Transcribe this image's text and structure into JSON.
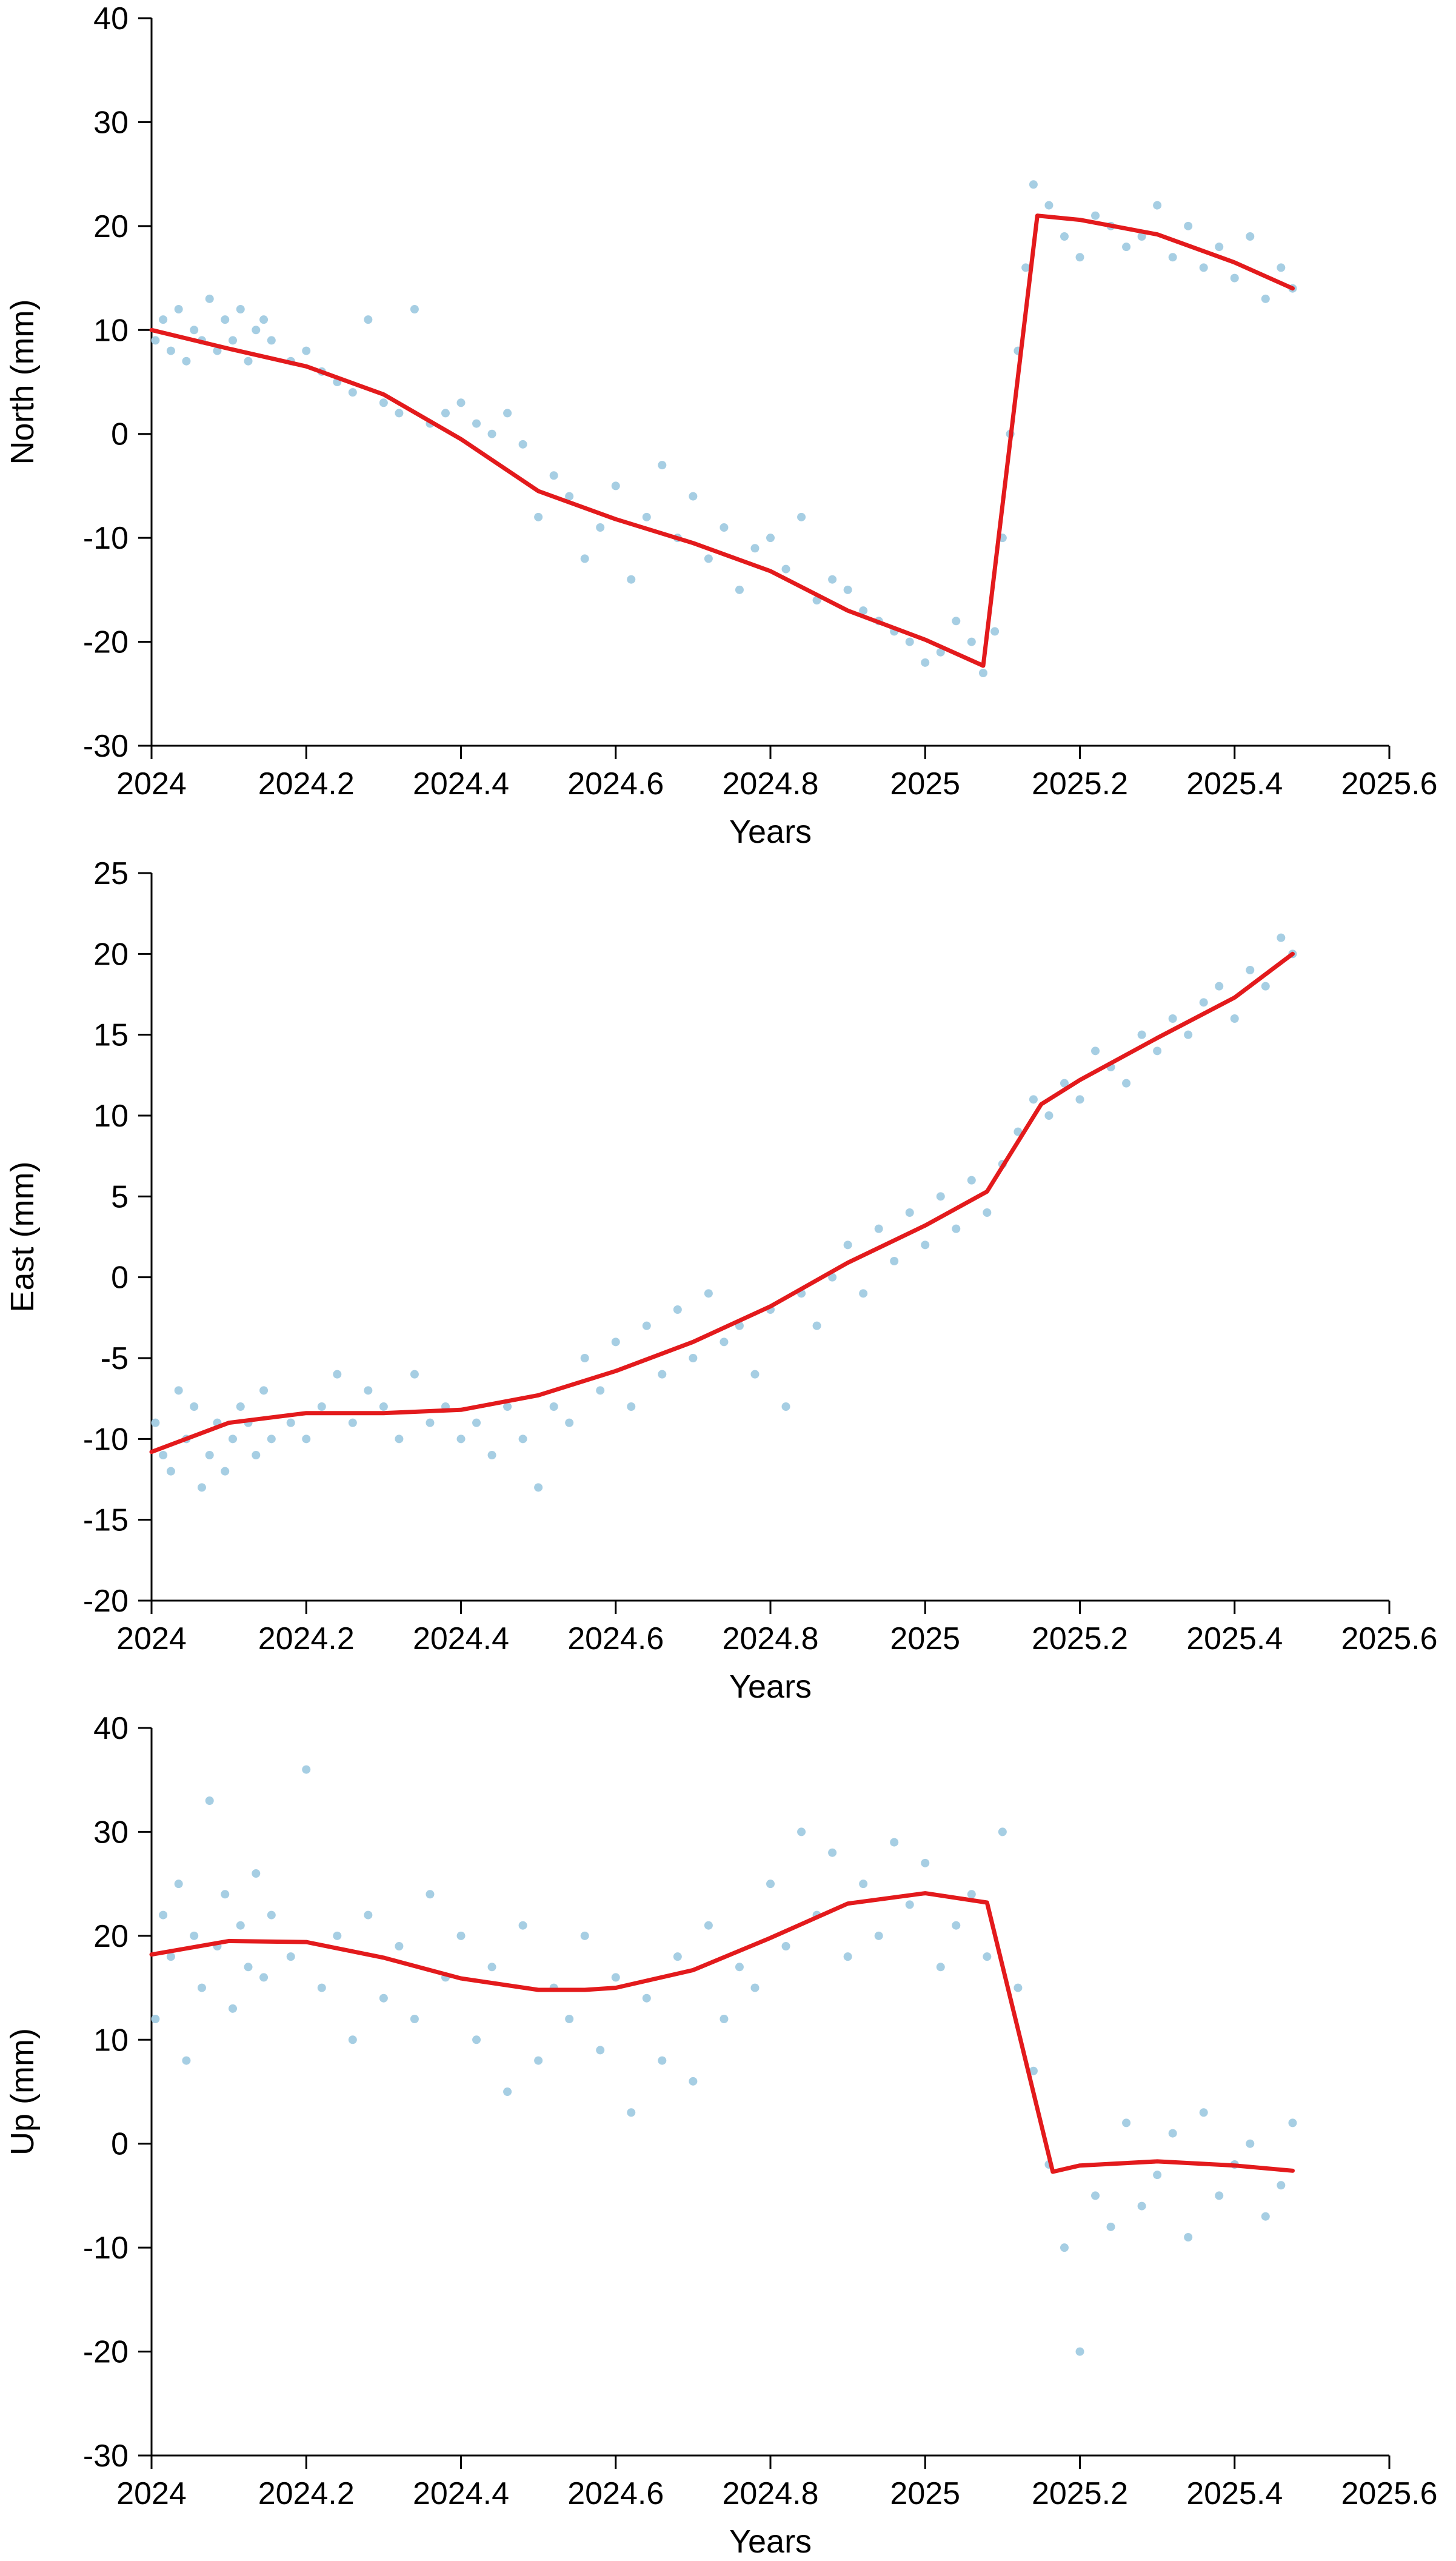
{
  "colors": {
    "points": "#a6cee3",
    "model_line": "#e31a1c",
    "axis": "#000000"
  },
  "chart_data": [
    {
      "type": "scatter",
      "title": "",
      "xlabel": "Years",
      "ylabel": "North (mm)",
      "xlim": [
        2024,
        2025.6
      ],
      "ylim": [
        -30,
        40
      ],
      "xticks": [
        2024,
        2024.2,
        2024.4,
        2024.6,
        2024.8,
        2025,
        2025.2,
        2025.4,
        2025.6
      ],
      "xtick_labels": [
        "2024",
        "2024.2",
        "2024.4",
        "2024.6",
        "2024.8",
        "2025",
        "2025.2",
        "2025.4",
        "2025.6"
      ],
      "yticks": [
        -30,
        -20,
        -10,
        0,
        10,
        20,
        30,
        40
      ],
      "ytick_labels": [
        "-30",
        "-20",
        "-10",
        "0",
        "10",
        "20",
        "30",
        "40"
      ],
      "grid": false,
      "series": [
        {
          "type": "scatter",
          "x": [
            2024.005,
            2024.015,
            2024.025,
            2024.035,
            2024.045,
            2024.055,
            2024.065,
            2024.075,
            2024.085,
            2024.095,
            2024.105,
            2024.115,
            2024.125,
            2024.135,
            2024.145,
            2024.155,
            2024.18,
            2024.2,
            2024.22,
            2024.24,
            2024.26,
            2024.28,
            2024.3,
            2024.32,
            2024.34,
            2024.36,
            2024.38,
            2024.4,
            2024.42,
            2024.44,
            2024.46,
            2024.48,
            2024.5,
            2024.52,
            2024.54,
            2024.56,
            2024.58,
            2024.6,
            2024.62,
            2024.64,
            2024.66,
            2024.68,
            2024.7,
            2024.72,
            2024.74,
            2024.76,
            2024.78,
            2024.8,
            2024.82,
            2024.84,
            2024.86,
            2024.88,
            2024.9,
            2024.92,
            2024.94,
            2024.96,
            2024.98,
            2025.0,
            2025.02,
            2025.04,
            2025.06,
            2025.075,
            2025.09,
            2025.1,
            2025.11,
            2025.12,
            2025.13,
            2025.14,
            2025.16,
            2025.18,
            2025.2,
            2025.22,
            2025.24,
            2025.26,
            2025.28,
            2025.3,
            2025.32,
            2025.34,
            2025.36,
            2025.38,
            2025.4,
            2025.42,
            2025.44,
            2025.46,
            2025.475
          ],
          "y": [
            9,
            11,
            8,
            12,
            7,
            10,
            9,
            13,
            8,
            11,
            9,
            12,
            7,
            10,
            11,
            9,
            7,
            8,
            6,
            5,
            4,
            11,
            3,
            2,
            12,
            1,
            2,
            3,
            1,
            0,
            2,
            -1,
            -8,
            -4,
            -6,
            -12,
            -9,
            -5,
            -14,
            -8,
            -3,
            -10,
            -6,
            -12,
            -9,
            -15,
            -11,
            -10,
            -13,
            -8,
            -16,
            -14,
            -15,
            -17,
            -18,
            -19,
            -20,
            -22,
            -21,
            -18,
            -20,
            -23,
            -19,
            -10,
            0,
            8,
            16,
            24,
            22,
            19,
            17,
            21,
            20,
            18,
            19,
            22,
            17,
            20,
            16,
            18,
            15,
            19,
            13,
            16,
            14
          ]
        },
        {
          "type": "line",
          "x": [
            2024.0,
            2024.1,
            2024.2,
            2024.3,
            2024.4,
            2024.5,
            2024.6,
            2024.7,
            2024.8,
            2024.9,
            2025.0,
            2025.075,
            2025.145,
            2025.2,
            2025.3,
            2025.4,
            2025.475
          ],
          "y": [
            10,
            8.2,
            6.5,
            3.8,
            -0.5,
            -5.5,
            -8.2,
            -10.5,
            -13.2,
            -17.0,
            -19.8,
            -22.3,
            21.0,
            20.6,
            19.2,
            16.5,
            14.0
          ]
        }
      ]
    },
    {
      "type": "scatter",
      "title": "",
      "xlabel": "Years",
      "ylabel": "East (mm)",
      "xlim": [
        2024,
        2025.6
      ],
      "ylim": [
        -20,
        25
      ],
      "xticks": [
        2024,
        2024.2,
        2024.4,
        2024.6,
        2024.8,
        2025,
        2025.2,
        2025.4,
        2025.6
      ],
      "xtick_labels": [
        "2024",
        "2024.2",
        "2024.4",
        "2024.6",
        "2024.8",
        "2025",
        "2025.2",
        "2025.4",
        "2025.6"
      ],
      "yticks": [
        -20,
        -15,
        -10,
        -5,
        0,
        5,
        10,
        15,
        20,
        25
      ],
      "ytick_labels": [
        "-20",
        "-15",
        "-10",
        "-5",
        "0",
        "5",
        "10",
        "15",
        "20",
        "25"
      ],
      "grid": false,
      "series": [
        {
          "type": "scatter",
          "x": [
            2024.005,
            2024.015,
            2024.025,
            2024.035,
            2024.045,
            2024.055,
            2024.065,
            2024.075,
            2024.085,
            2024.095,
            2024.105,
            2024.115,
            2024.125,
            2024.135,
            2024.145,
            2024.155,
            2024.18,
            2024.2,
            2024.22,
            2024.24,
            2024.26,
            2024.28,
            2024.3,
            2024.32,
            2024.34,
            2024.36,
            2024.38,
            2024.4,
            2024.42,
            2024.44,
            2024.46,
            2024.48,
            2024.5,
            2024.52,
            2024.54,
            2024.56,
            2024.58,
            2024.6,
            2024.62,
            2024.64,
            2024.66,
            2024.68,
            2024.7,
            2024.72,
            2024.74,
            2024.76,
            2024.78,
            2024.8,
            2024.82,
            2024.84,
            2024.86,
            2024.88,
            2024.9,
            2024.92,
            2024.94,
            2024.96,
            2024.98,
            2025.0,
            2025.02,
            2025.04,
            2025.06,
            2025.08,
            2025.1,
            2025.12,
            2025.14,
            2025.16,
            2025.18,
            2025.2,
            2025.22,
            2025.24,
            2025.26,
            2025.28,
            2025.3,
            2025.32,
            2025.34,
            2025.36,
            2025.38,
            2025.4,
            2025.42,
            2025.44,
            2025.46,
            2025.475
          ],
          "y": [
            -9,
            -11,
            -12,
            -7,
            -10,
            -8,
            -13,
            -11,
            -9,
            -12,
            -10,
            -8,
            -9,
            -11,
            -7,
            -10,
            -9,
            -10,
            -8,
            -6,
            -9,
            -7,
            -8,
            -10,
            -6,
            -9,
            -8,
            -10,
            -9,
            -11,
            -8,
            -10,
            -13,
            -8,
            -9,
            -5,
            -7,
            -4,
            -8,
            -3,
            -6,
            -2,
            -5,
            -1,
            -4,
            -3,
            -6,
            -2,
            -8,
            -1,
            -3,
            0,
            2,
            -1,
            3,
            1,
            4,
            2,
            5,
            3,
            6,
            4,
            7,
            9,
            11,
            10,
            12,
            11,
            14,
            13,
            12,
            15,
            14,
            16,
            15,
            17,
            18,
            16,
            19,
            18,
            21,
            20
          ]
        },
        {
          "type": "line",
          "x": [
            2024.0,
            2024.1,
            2024.2,
            2024.3,
            2024.4,
            2024.5,
            2024.6,
            2024.7,
            2024.8,
            2024.9,
            2025.0,
            2025.08,
            2025.15,
            2025.2,
            2025.3,
            2025.4,
            2025.475
          ],
          "y": [
            -10.8,
            -9.0,
            -8.4,
            -8.4,
            -8.2,
            -7.3,
            -5.8,
            -4.0,
            -1.8,
            0.9,
            3.2,
            5.3,
            10.7,
            12.2,
            14.8,
            17.3,
            20.0
          ]
        }
      ]
    },
    {
      "type": "scatter",
      "title": "",
      "xlabel": "Years",
      "ylabel": "Up (mm)",
      "xlim": [
        2024,
        2025.6
      ],
      "ylim": [
        -30,
        40
      ],
      "xticks": [
        2024,
        2024.2,
        2024.4,
        2024.6,
        2024.8,
        2025,
        2025.2,
        2025.4,
        2025.6
      ],
      "xtick_labels": [
        "2024",
        "2024.2",
        "2024.4",
        "2024.6",
        "2024.8",
        "2025",
        "2025.2",
        "2025.4",
        "2025.6"
      ],
      "yticks": [
        -30,
        -20,
        -10,
        0,
        10,
        20,
        30,
        40
      ],
      "ytick_labels": [
        "-30",
        "-20",
        "-10",
        "0",
        "10",
        "20",
        "30",
        "40"
      ],
      "grid": false,
      "series": [
        {
          "type": "scatter",
          "x": [
            2024.005,
            2024.015,
            2024.025,
            2024.035,
            2024.045,
            2024.055,
            2024.065,
            2024.075,
            2024.085,
            2024.095,
            2024.105,
            2024.115,
            2024.125,
            2024.135,
            2024.145,
            2024.155,
            2024.18,
            2024.2,
            2024.22,
            2024.24,
            2024.26,
            2024.28,
            2024.3,
            2024.32,
            2024.34,
            2024.36,
            2024.38,
            2024.4,
            2024.42,
            2024.44,
            2024.46,
            2024.48,
            2024.5,
            2024.52,
            2024.54,
            2024.56,
            2024.58,
            2024.6,
            2024.62,
            2024.64,
            2024.66,
            2024.68,
            2024.7,
            2024.72,
            2024.74,
            2024.76,
            2024.78,
            2024.8,
            2024.82,
            2024.84,
            2024.86,
            2024.88,
            2024.9,
            2024.92,
            2024.94,
            2024.96,
            2024.98,
            2025.0,
            2025.02,
            2025.04,
            2025.06,
            2025.08,
            2025.1,
            2025.12,
            2025.14,
            2025.16,
            2025.18,
            2025.2,
            2025.22,
            2025.24,
            2025.26,
            2025.28,
            2025.3,
            2025.32,
            2025.34,
            2025.36,
            2025.38,
            2025.4,
            2025.42,
            2025.44,
            2025.46,
            2025.475
          ],
          "y": [
            12,
            22,
            18,
            25,
            8,
            20,
            15,
            33,
            19,
            24,
            13,
            21,
            17,
            26,
            16,
            22,
            18,
            36,
            15,
            20,
            10,
            22,
            14,
            19,
            12,
            24,
            16,
            20,
            10,
            17,
            5,
            21,
            8,
            15,
            12,
            20,
            9,
            16,
            3,
            14,
            8,
            18,
            6,
            21,
            12,
            17,
            15,
            25,
            19,
            30,
            22,
            28,
            18,
            25,
            20,
            29,
            23,
            27,
            17,
            21,
            24,
            18,
            30,
            15,
            7,
            -2,
            -10,
            -20,
            -5,
            -8,
            2,
            -6,
            -3,
            1,
            -9,
            3,
            -5,
            -2,
            0,
            -7,
            -4,
            2
          ]
        },
        {
          "type": "line",
          "x": [
            2024.0,
            2024.1,
            2024.2,
            2024.3,
            2024.4,
            2024.5,
            2024.56,
            2024.6,
            2024.7,
            2024.8,
            2024.9,
            2025.0,
            2025.08,
            2025.165,
            2025.2,
            2025.3,
            2025.4,
            2025.475
          ],
          "y": [
            18.2,
            19.5,
            19.4,
            17.9,
            15.9,
            14.8,
            14.8,
            15.0,
            16.7,
            19.8,
            23.1,
            24.1,
            23.2,
            -2.7,
            -2.1,
            -1.7,
            -2.1,
            -2.6
          ]
        }
      ]
    }
  ]
}
